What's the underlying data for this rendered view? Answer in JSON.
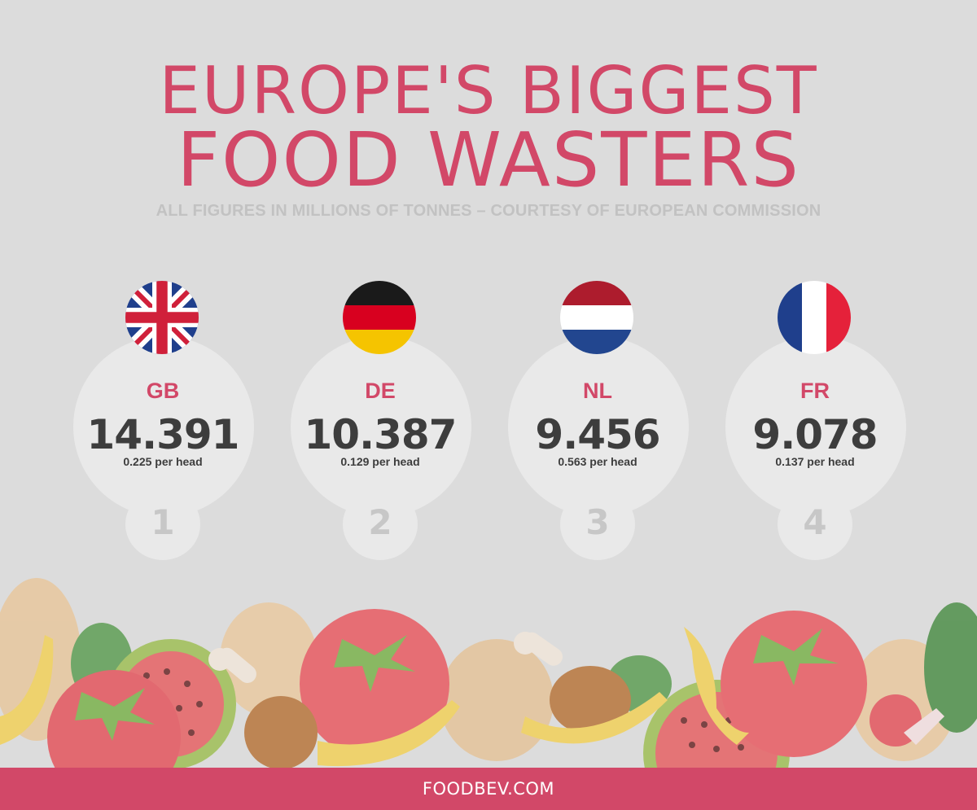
{
  "title": {
    "line1": "EUROPE'S BIGGEST",
    "line2": "FOOD WASTERS"
  },
  "subtitle": "ALL FIGURES IN MILLIONS OF TONNES – COURTESY OF EUROPEAN COMMISSION",
  "colors": {
    "accent": "#d24868",
    "background": "#dcdcdc",
    "bubble": "#e9e9e9",
    "value_text": "#3d3d3d",
    "rank_text": "#c7c7c7"
  },
  "countries": [
    {
      "flag_icon": "uk-flag-icon",
      "code": "GB",
      "value": "14.391",
      "per_head": "0.225 per head",
      "rank": "1"
    },
    {
      "flag_icon": "germany-flag-icon",
      "code": "DE",
      "value": "10.387",
      "per_head": "0.129 per head",
      "rank": "2"
    },
    {
      "flag_icon": "netherlands-flag-icon",
      "code": "NL",
      "value": "9.456",
      "per_head": "0.563 per head",
      "rank": "3"
    },
    {
      "flag_icon": "france-flag-icon",
      "code": "FR",
      "value": "9.078",
      "per_head": "0.137 per head",
      "rank": "4"
    }
  ],
  "footer": {
    "text": "FOODBEV.COM"
  }
}
